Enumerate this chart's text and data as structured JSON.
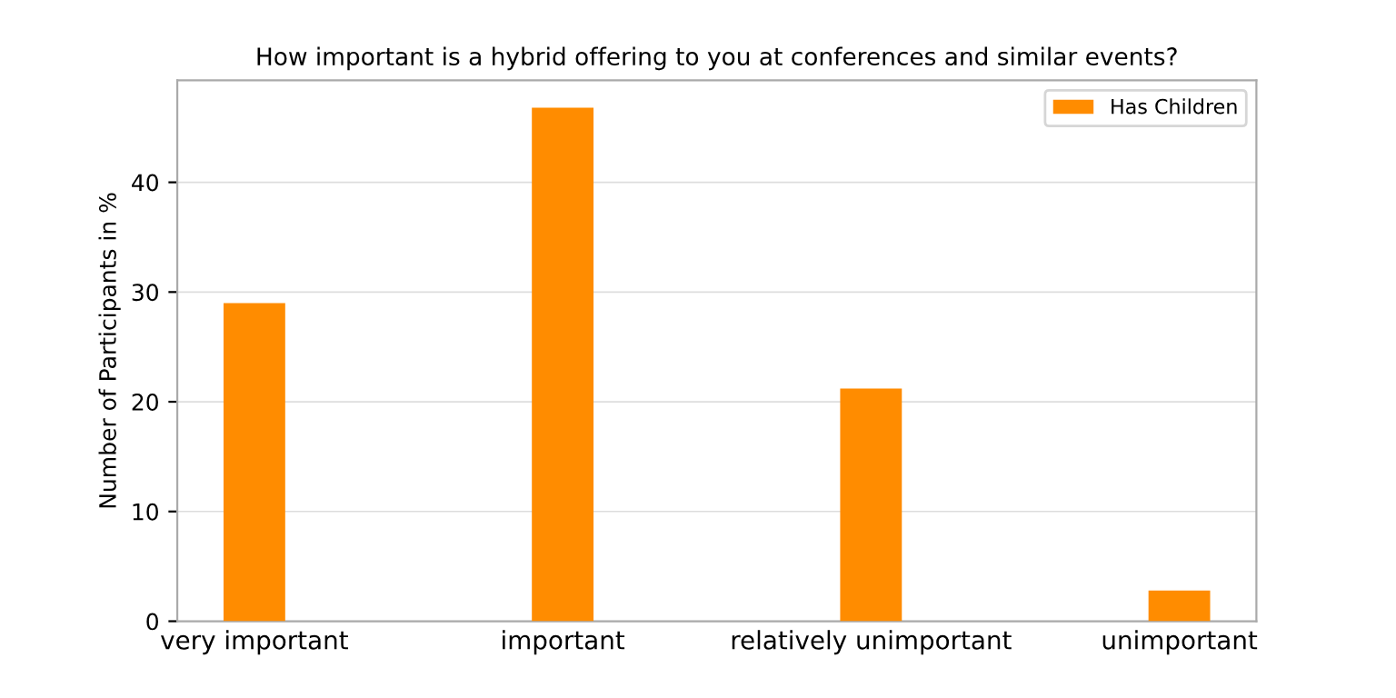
{
  "chart_data": {
    "type": "bar",
    "title": "How important is a hybrid offering to you at conferences and similar events?",
    "ylabel": "Number of Participants in %",
    "categories": [
      "very important",
      "important",
      "relatively unimportant",
      "unimportant"
    ],
    "series": [
      {
        "name": "Has Children",
        "color": "#ff8c00",
        "values": [
          29.0,
          46.8,
          21.2,
          2.8
        ]
      }
    ],
    "ylim": [
      0,
      49.3
    ],
    "yticks": [
      0,
      10,
      20,
      30,
      40
    ],
    "grid": "y",
    "legend": "top right"
  }
}
